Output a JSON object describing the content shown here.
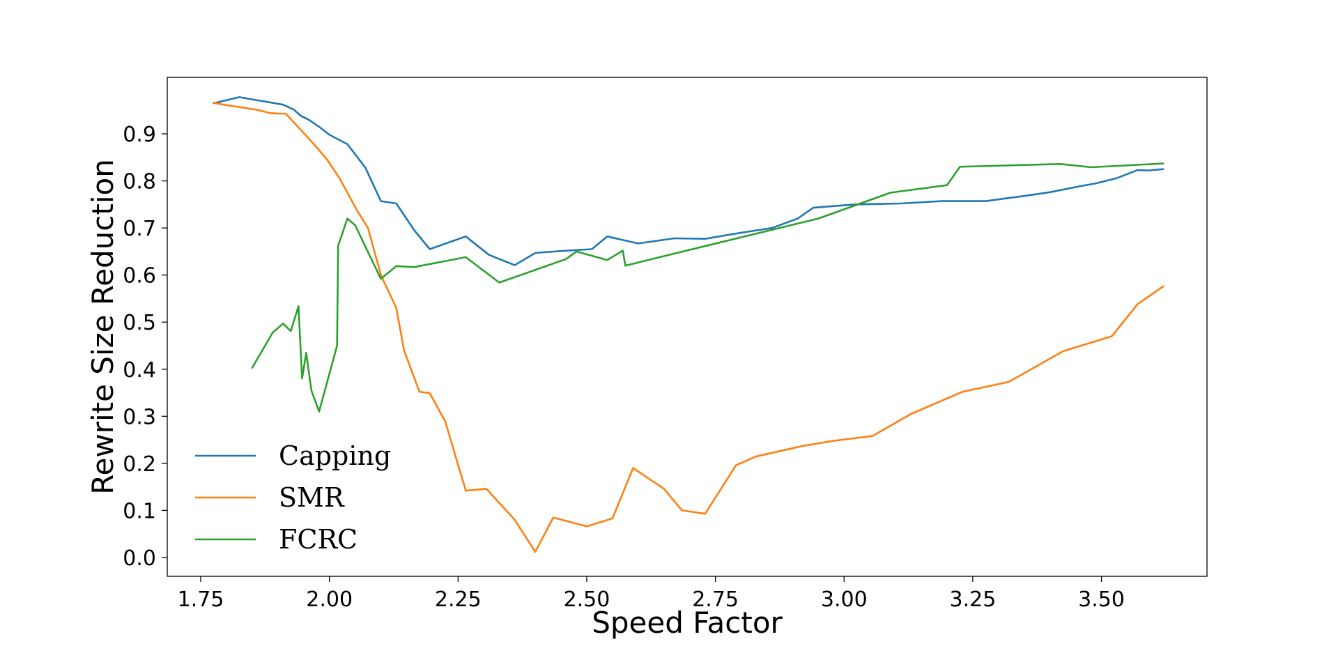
{
  "chart_data": {
    "type": "line",
    "xlabel": "Speed Factor",
    "ylabel": "Rewrite Size Reduction",
    "xlim": [
      1.685,
      3.705
    ],
    "ylim": [
      -0.04,
      1.02
    ],
    "xticks": [
      1.75,
      2.0,
      2.25,
      2.5,
      2.75,
      3.0,
      3.25,
      3.5
    ],
    "xtick_labels": [
      "1.75",
      "2.00",
      "2.25",
      "2.50",
      "2.75",
      "3.00",
      "3.25",
      "3.50"
    ],
    "yticks": [
      0.0,
      0.1,
      0.2,
      0.3,
      0.4,
      0.5,
      0.6,
      0.7,
      0.8,
      0.9
    ],
    "ytick_labels": [
      "0.0",
      "0.1",
      "0.2",
      "0.3",
      "0.4",
      "0.5",
      "0.6",
      "0.7",
      "0.8",
      "0.9"
    ],
    "grid": false,
    "legend_position": "lower-left",
    "series": [
      {
        "name": "Capping",
        "color": "#1f77b4",
        "points": [
          [
            1.775,
            0.965
          ],
          [
            1.825,
            0.978
          ],
          [
            1.91,
            0.962
          ],
          [
            1.93,
            0.952
          ],
          [
            1.945,
            0.938
          ],
          [
            1.96,
            0.93
          ],
          [
            1.98,
            0.915
          ],
          [
            2.0,
            0.898
          ],
          [
            2.035,
            0.878
          ],
          [
            2.07,
            0.828
          ],
          [
            2.1,
            0.757
          ],
          [
            2.13,
            0.752
          ],
          [
            2.165,
            0.695
          ],
          [
            2.195,
            0.655
          ],
          [
            2.265,
            0.682
          ],
          [
            2.31,
            0.643
          ],
          [
            2.36,
            0.621
          ],
          [
            2.4,
            0.647
          ],
          [
            2.45,
            0.651
          ],
          [
            2.51,
            0.655
          ],
          [
            2.54,
            0.682
          ],
          [
            2.6,
            0.667
          ],
          [
            2.67,
            0.678
          ],
          [
            2.73,
            0.677
          ],
          [
            2.8,
            0.69
          ],
          [
            2.86,
            0.7
          ],
          [
            2.91,
            0.72
          ],
          [
            2.94,
            0.743
          ],
          [
            3.02,
            0.75
          ],
          [
            3.11,
            0.752
          ],
          [
            3.19,
            0.757
          ],
          [
            3.275,
            0.757
          ],
          [
            3.35,
            0.768
          ],
          [
            3.4,
            0.776
          ],
          [
            3.46,
            0.789
          ],
          [
            3.49,
            0.795
          ],
          [
            3.53,
            0.806
          ],
          [
            3.57,
            0.823
          ],
          [
            3.59,
            0.822
          ],
          [
            3.62,
            0.825
          ]
        ]
      },
      {
        "name": "SMR",
        "color": "#ff7f0e",
        "points": [
          [
            1.775,
            0.966
          ],
          [
            1.8,
            0.961
          ],
          [
            1.825,
            0.957
          ],
          [
            1.86,
            0.951
          ],
          [
            1.885,
            0.944
          ],
          [
            1.9,
            0.943
          ],
          [
            1.915,
            0.943
          ],
          [
            1.945,
            0.908
          ],
          [
            1.97,
            0.878
          ],
          [
            1.995,
            0.846
          ],
          [
            2.02,
            0.805
          ],
          [
            2.055,
            0.735
          ],
          [
            2.075,
            0.7
          ],
          [
            2.1,
            0.6
          ],
          [
            2.13,
            0.53
          ],
          [
            2.145,
            0.44
          ],
          [
            2.175,
            0.352
          ],
          [
            2.195,
            0.349
          ],
          [
            2.225,
            0.289
          ],
          [
            2.265,
            0.142
          ],
          [
            2.305,
            0.146
          ],
          [
            2.36,
            0.08
          ],
          [
            2.4,
            0.012
          ],
          [
            2.435,
            0.085
          ],
          [
            2.5,
            0.066
          ],
          [
            2.55,
            0.083
          ],
          [
            2.59,
            0.19
          ],
          [
            2.65,
            0.146
          ],
          [
            2.685,
            0.1
          ],
          [
            2.73,
            0.093
          ],
          [
            2.79,
            0.196
          ],
          [
            2.83,
            0.215
          ],
          [
            2.92,
            0.237
          ],
          [
            2.98,
            0.248
          ],
          [
            3.055,
            0.258
          ],
          [
            3.13,
            0.305
          ],
          [
            3.23,
            0.352
          ],
          [
            3.32,
            0.373
          ],
          [
            3.425,
            0.438
          ],
          [
            3.52,
            0.47
          ],
          [
            3.57,
            0.538
          ],
          [
            3.62,
            0.576
          ]
        ]
      },
      {
        "name": "FCRC",
        "color": "#2ca02c",
        "points": [
          [
            1.85,
            0.403
          ],
          [
            1.89,
            0.478
          ],
          [
            1.91,
            0.497
          ],
          [
            1.925,
            0.481
          ],
          [
            1.94,
            0.534
          ],
          [
            1.947,
            0.38
          ],
          [
            1.955,
            0.435
          ],
          [
            1.965,
            0.355
          ],
          [
            1.98,
            0.31
          ],
          [
            2.015,
            0.45
          ],
          [
            2.017,
            0.662
          ],
          [
            2.035,
            0.72
          ],
          [
            2.05,
            0.706
          ],
          [
            2.1,
            0.592
          ],
          [
            2.13,
            0.619
          ],
          [
            2.165,
            0.617
          ],
          [
            2.265,
            0.638
          ],
          [
            2.33,
            0.584
          ],
          [
            2.46,
            0.634
          ],
          [
            2.48,
            0.65
          ],
          [
            2.54,
            0.632
          ],
          [
            2.57,
            0.652
          ],
          [
            2.575,
            0.62
          ],
          [
            2.63,
            0.635
          ],
          [
            2.95,
            0.72
          ],
          [
            3.09,
            0.775
          ],
          [
            3.2,
            0.791
          ],
          [
            3.225,
            0.83
          ],
          [
            3.42,
            0.836
          ],
          [
            3.48,
            0.829
          ],
          [
            3.62,
            0.837
          ]
        ]
      }
    ]
  }
}
